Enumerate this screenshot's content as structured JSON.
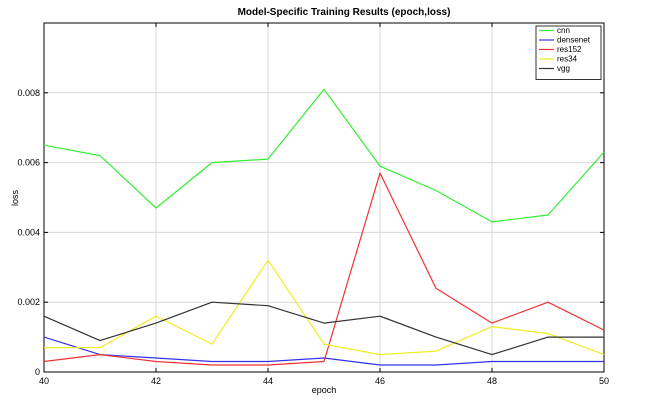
{
  "chart_data": {
    "type": "line",
    "title": "Model-Specific Training Results (epoch,loss)",
    "xlabel": "epoch",
    "ylabel": "loss",
    "xlim": [
      40,
      50
    ],
    "ylim": [
      0,
      0.01
    ],
    "x_ticks": [
      40,
      42,
      44,
      46,
      48,
      50
    ],
    "x_tick_labels": [
      "40",
      "42",
      "44",
      "46",
      "48",
      "50"
    ],
    "y_ticks": [
      0,
      0.002,
      0.004,
      0.006,
      0.008
    ],
    "y_tick_labels": [
      "0",
      "0.002",
      "0.004",
      "0.006",
      "0.008"
    ],
    "grid": true,
    "legend_position": "top-right",
    "x": [
      40,
      41,
      42,
      43,
      44,
      45,
      46,
      47,
      48,
      49,
      50
    ],
    "series": [
      {
        "name": "cnn",
        "color": "#33ee33",
        "values": [
          0.0065,
          0.0062,
          0.0047,
          0.006,
          0.0061,
          0.0081,
          0.0059,
          0.0052,
          0.0043,
          0.0045,
          0.0063
        ]
      },
      {
        "name": "densenet",
        "color": "#3333ee",
        "values": [
          0.001,
          0.0005,
          0.0004,
          0.0003,
          0.0003,
          0.0004,
          0.0002,
          0.0002,
          0.0003,
          0.0003,
          0.0003
        ]
      },
      {
        "name": "res152",
        "color": "#ee3333",
        "values": [
          0.0003,
          0.0005,
          0.0003,
          0.0002,
          0.0002,
          0.0003,
          0.0057,
          0.0024,
          0.0014,
          0.002,
          0.0012
        ]
      },
      {
        "name": "res34",
        "color": "#eeee22",
        "values": [
          0.0007,
          0.0007,
          0.0016,
          0.0008,
          0.0032,
          0.0008,
          0.0005,
          0.0006,
          0.0013,
          0.0011,
          0.0005
        ]
      },
      {
        "name": "vgg",
        "color": "#333333",
        "values": [
          0.0016,
          0.0009,
          0.0014,
          0.002,
          0.0019,
          0.0014,
          0.0016,
          0.001,
          0.0005,
          0.001,
          0.001
        ]
      }
    ]
  }
}
